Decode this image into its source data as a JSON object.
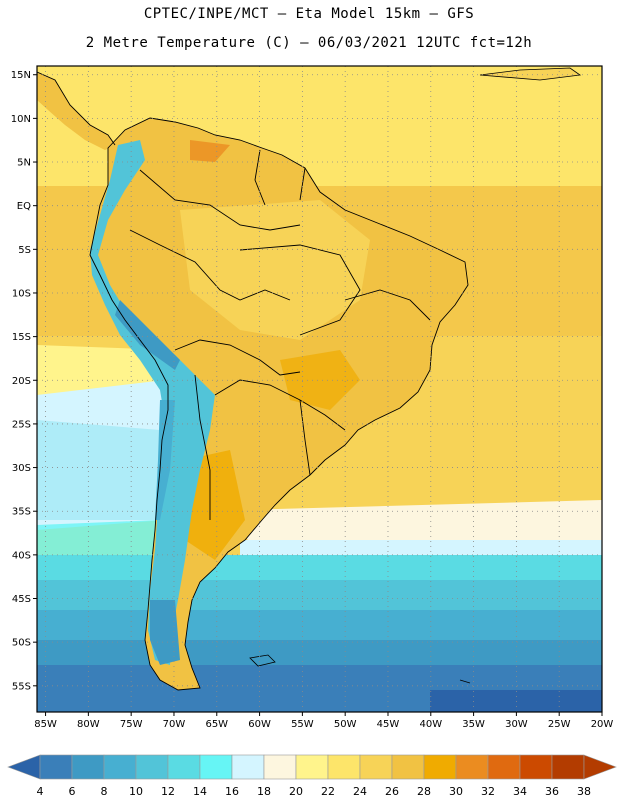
{
  "header": {
    "line1": "CPTEC/INPE/MCT –  Eta Model 15km – GFS",
    "line2": "2 Metre Temperature (C) – 06/03/2021 12UTC fct=12h"
  },
  "map": {
    "lat_range": [
      -58,
      16
    ],
    "lon_range": [
      -86,
      -20
    ],
    "lat_ticks": [
      "15N",
      "10N",
      "5N",
      "EQ",
      "5S",
      "10S",
      "15S",
      "20S",
      "25S",
      "30S",
      "35S",
      "40S",
      "45S",
      "50S",
      "55S"
    ],
    "lon_ticks": [
      "85W",
      "80W",
      "75W",
      "70W",
      "65W",
      "60W",
      "55W",
      "50W",
      "45W",
      "40W",
      "35W",
      "30W",
      "25W",
      "20W"
    ]
  },
  "colorbar": {
    "labels": [
      "4",
      "6",
      "8",
      "10",
      "12",
      "14",
      "16",
      "18",
      "20",
      "22",
      "24",
      "26",
      "28",
      "30",
      "32",
      "34",
      "36",
      "38"
    ],
    "colors": [
      "#2b63a8",
      "#3a7fb9",
      "#3e9ac4",
      "#47afd1",
      "#52c4d8",
      "#5adbe3",
      "#66f5f5",
      "#d4f5ff",
      "#fdf6df",
      "#fff48c",
      "#fde56a",
      "#f7d357",
      "#f1c243",
      "#f0ab00",
      "#eb8c20",
      "#e06a10",
      "#cc4a00",
      "#b33c00"
    ]
  },
  "legend_colors": {
    "ocean_cold": "#2b63a8",
    "ocean_mid": "#47afd1",
    "ocean_warm": "#f7d357",
    "land_warm": "#f1c243",
    "andes_cold": "#52c4d8"
  }
}
